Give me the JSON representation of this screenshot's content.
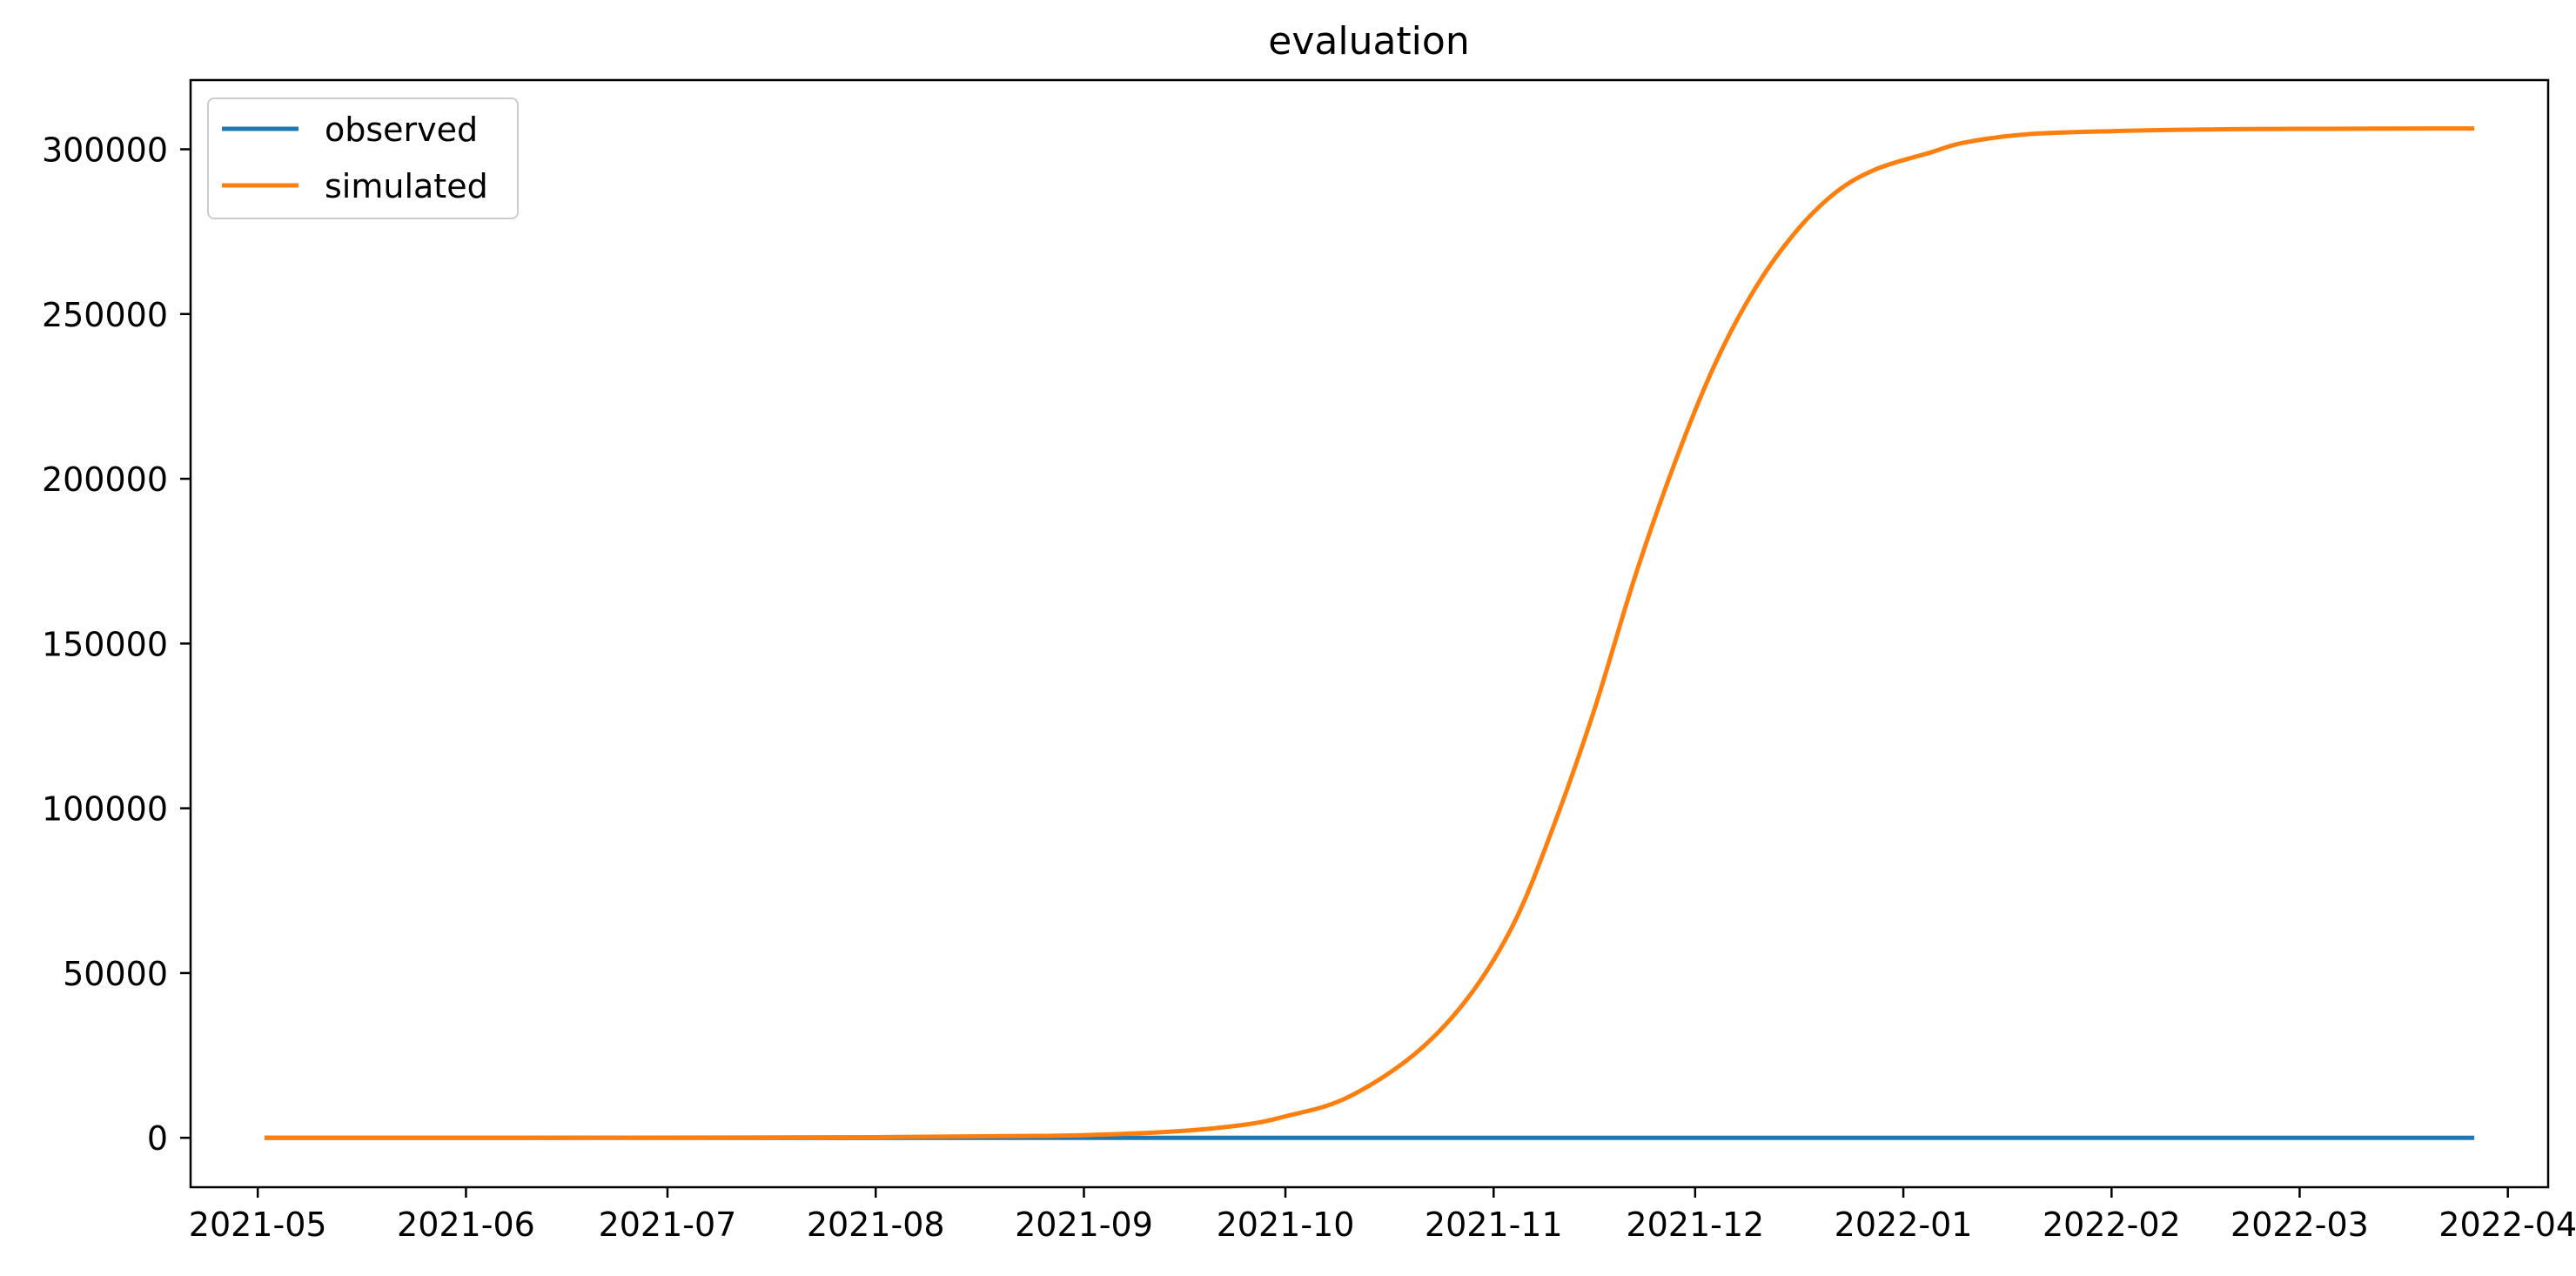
{
  "chart_data": {
    "type": "line",
    "title": "evaluation",
    "xlabel": "",
    "ylabel": "",
    "x_start": "2021-05-02",
    "x_end": "2022-03-27",
    "xlim": [
      "2021-04-21",
      "2022-04-07"
    ],
    "ylim": [
      -15000,
      321000
    ],
    "x_ticks": [
      "2021-05",
      "2021-06",
      "2021-07",
      "2021-08",
      "2021-09",
      "2021-10",
      "2021-11",
      "2021-12",
      "2022-01",
      "2022-02",
      "2022-03",
      "2022-04"
    ],
    "y_ticks": [
      "0",
      "50000",
      "100000",
      "150000",
      "200000",
      "250000",
      "300000"
    ],
    "grid": false,
    "legend": "upper left",
    "series": [
      {
        "name": "observed",
        "color": "#1f77b4",
        "points": [
          [
            "2021-05-02",
            0
          ],
          [
            "2022-03-27",
            0
          ]
        ]
      },
      {
        "name": "simulated",
        "color": "#ff7f0e",
        "points": [
          [
            "2021-05-02",
            0
          ],
          [
            "2021-06-01",
            0
          ],
          [
            "2021-07-01",
            50
          ],
          [
            "2021-08-01",
            200
          ],
          [
            "2021-08-20",
            500
          ],
          [
            "2021-09-01",
            800
          ],
          [
            "2021-09-15",
            2000
          ],
          [
            "2021-09-25",
            4000
          ],
          [
            "2021-10-01",
            6500
          ],
          [
            "2021-10-10",
            12000
          ],
          [
            "2021-10-20",
            25000
          ],
          [
            "2021-10-28",
            42000
          ],
          [
            "2021-11-04",
            65000
          ],
          [
            "2021-11-10",
            95000
          ],
          [
            "2021-11-16",
            130000
          ],
          [
            "2021-11-22",
            170000
          ],
          [
            "2021-11-28",
            205000
          ],
          [
            "2021-12-04",
            235000
          ],
          [
            "2021-12-10",
            258000
          ],
          [
            "2021-12-16",
            275000
          ],
          [
            "2021-12-22",
            287000
          ],
          [
            "2021-12-28",
            294000
          ],
          [
            "2022-01-05",
            299000
          ],
          [
            "2022-01-10",
            302000
          ],
          [
            "2022-01-19",
            304500
          ],
          [
            "2022-02-01",
            305500
          ],
          [
            "2022-02-15",
            306000
          ],
          [
            "2022-03-01",
            306200
          ],
          [
            "2022-03-27",
            306300
          ]
        ]
      }
    ]
  }
}
